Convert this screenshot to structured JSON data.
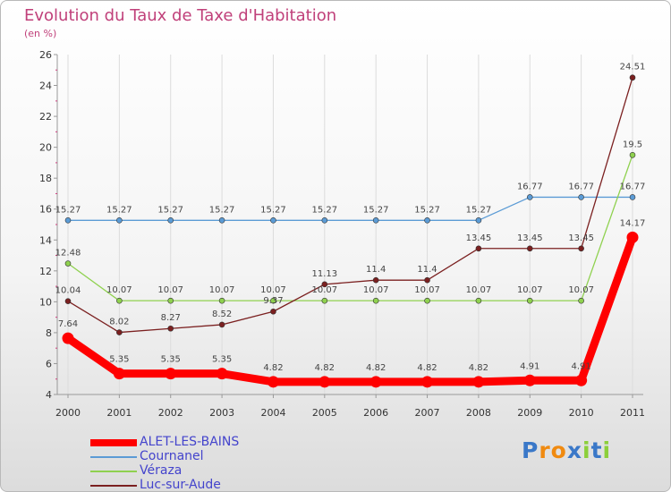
{
  "title": "Evolution du Taux de Taxe d'Habitation",
  "subtitle": "(en %)",
  "logo": "Proxiti",
  "chart_data": {
    "type": "line",
    "title": "Evolution du Taux de Taxe d'Habitation",
    "ylabel": "(en %)",
    "x": [
      "2000",
      "2001",
      "2002",
      "2003",
      "2004",
      "2005",
      "2006",
      "2007",
      "2008",
      "2009",
      "2010",
      "2011"
    ],
    "ylim": [
      4,
      26
    ],
    "yticks": [
      4,
      6,
      8,
      10,
      12,
      14,
      16,
      18,
      20,
      22,
      24,
      26
    ],
    "grid": "vertical",
    "legend_position": "bottom-left",
    "series": [
      {
        "name": "ALET-LES-BAINS",
        "color": "#ff0000",
        "emphasis": true,
        "values": [
          7.64,
          5.35,
          5.35,
          5.35,
          4.82,
          4.82,
          4.82,
          4.82,
          4.82,
          4.91,
          4.91,
          14.17
        ],
        "labels": [
          "7.64",
          "5.35",
          "5.35",
          "5.35",
          "4.82",
          "4.82",
          "4.82",
          "4.82",
          "4.82",
          "4.91",
          "4.91",
          "14.17"
        ]
      },
      {
        "name": "Cournanel",
        "color": "#5b9bd5",
        "values": [
          15.27,
          15.27,
          15.27,
          15.27,
          15.27,
          15.27,
          15.27,
          15.27,
          15.27,
          16.77,
          16.77,
          16.77
        ],
        "labels": [
          "15.27",
          "15.27",
          "15.27",
          "15.27",
          "15.27",
          "15.27",
          "15.27",
          "15.27",
          "15.27",
          "16.77",
          "16.77",
          "16.77"
        ]
      },
      {
        "name": "Véraza",
        "color": "#8fd14f",
        "values": [
          12.48,
          10.07,
          10.07,
          10.07,
          10.07,
          10.07,
          10.07,
          10.07,
          10.07,
          10.07,
          10.07,
          19.5
        ],
        "labels": [
          "12.48",
          "10.07",
          "10.07",
          "10.07",
          "10.07",
          "10.07",
          "10.07",
          "10.07",
          "10.07",
          "10.07",
          "10.07",
          "19.5"
        ]
      },
      {
        "name": "Luc-sur-Aude",
        "color": "#7b2020",
        "values": [
          10.04,
          8.02,
          8.27,
          8.52,
          9.37,
          11.13,
          11.4,
          11.4,
          13.45,
          13.45,
          13.45,
          24.51
        ],
        "labels": [
          "10.04",
          "8.02",
          "8.27",
          "8.52",
          "9.37",
          "11.13",
          "11.4",
          "11.4",
          "13.45",
          "13.45",
          "13.45",
          "24.51"
        ]
      }
    ]
  }
}
